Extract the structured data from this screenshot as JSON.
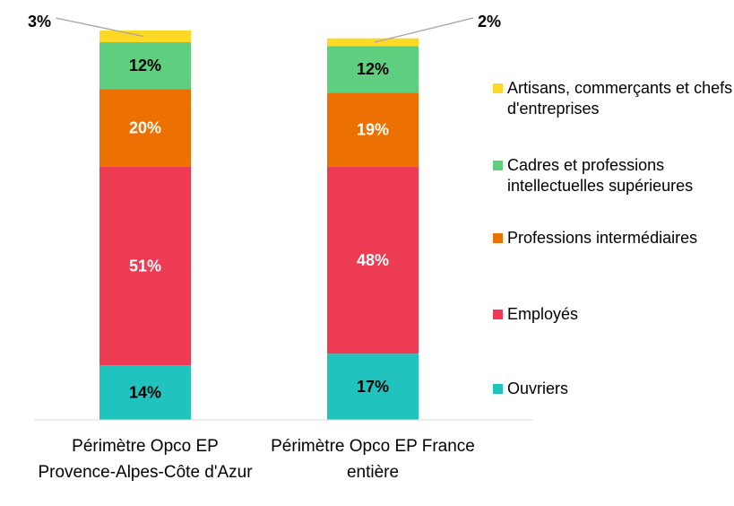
{
  "chart_data": {
    "type": "stacked_bar",
    "categories": [
      "Périmètre Opco EP Provence-Alpes-Côte d'Azur",
      "Périmètre Opco EP France entière"
    ],
    "ylim": [
      0,
      100
    ],
    "series": [
      {
        "name": "Ouvriers",
        "color": "#20c3be",
        "label_color": "#000000",
        "values": [
          14,
          17
        ],
        "value_labels": [
          "14%",
          "17%"
        ]
      },
      {
        "name": "Employés",
        "color": "#ec3b52",
        "label_color": "#ffffff",
        "values": [
          51,
          48
        ],
        "value_labels": [
          "51%",
          "48%"
        ]
      },
      {
        "name": "Professions intermédiaires",
        "color": "#ed7100",
        "label_color": "#ffffff",
        "values": [
          20,
          19
        ],
        "value_labels": [
          "20%",
          "19%"
        ]
      },
      {
        "name": "Cadres et professions intellectuelles supérieures",
        "color": "#5ecf7e",
        "label_color": "#000000",
        "values": [
          12,
          12
        ],
        "value_labels": [
          "12%",
          "12%"
        ]
      },
      {
        "name": "Artisans, commerçants et chefs d'entreprises",
        "color": "#fdd825",
        "label_color": "#000000",
        "values": [
          3,
          2
        ],
        "value_labels": [
          "3%",
          "2%"
        ]
      }
    ],
    "legend": "right"
  }
}
